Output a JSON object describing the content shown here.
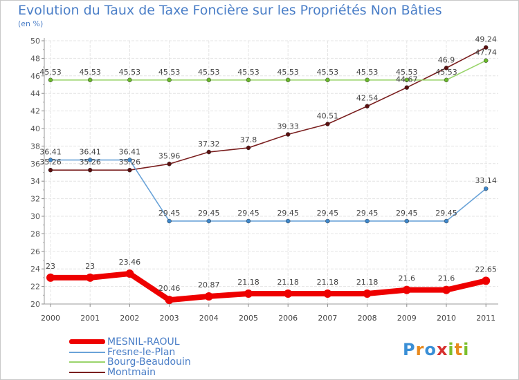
{
  "title": "Evolution du Taux de Taxe Foncière sur les Propriétés Non Bâties",
  "subtitle": "(en %)",
  "logo": {
    "text": "Proxiti",
    "letters": [
      "P",
      "r",
      "o",
      "x",
      "i",
      "t",
      "i"
    ],
    "colors": [
      "#3a8fd6",
      "#e88a1e",
      "#3a8fd6",
      "#d6302f",
      "#7cbf2c",
      "#e88a1e",
      "#7cbf2c"
    ]
  },
  "chart_data": {
    "type": "line",
    "title": "Evolution du Taux de Taxe Foncière sur les Propriétés Non Bâties",
    "ylabel": "(en %)",
    "xlabel": "",
    "ylim": [
      20,
      50
    ],
    "y_ticks": [
      20,
      22,
      24,
      26,
      28,
      30,
      32,
      34,
      36,
      38,
      40,
      42,
      44,
      46,
      48,
      50
    ],
    "categories": [
      "2000",
      "2001",
      "2002",
      "2003",
      "2004",
      "2005",
      "2006",
      "2007",
      "2008",
      "2009",
      "2010",
      "2011"
    ],
    "grid": true,
    "series": [
      {
        "name": "Montmain",
        "color": "#7a1f1f",
        "marker_color": "#5a1010",
        "values": [
          35.26,
          35.26,
          35.26,
          35.96,
          37.32,
          37.8,
          39.33,
          40.51,
          42.54,
          44.67,
          46.9,
          49.24
        ],
        "labels": [
          "35.26",
          "35.26",
          "35.26",
          "35.96",
          "37.32",
          "37.8",
          "39.33",
          "40.51",
          "42.54",
          "44.67",
          "46.9",
          "49.24"
        ]
      },
      {
        "name": "Bourg-Beaudouin",
        "color": "#99d46a",
        "marker_color": "#6ab82c",
        "values": [
          45.53,
          45.53,
          45.53,
          45.53,
          45.53,
          45.53,
          45.53,
          45.53,
          45.53,
          45.53,
          45.53,
          47.74
        ],
        "labels": [
          "45.53",
          "45.53",
          "45.53",
          "45.53",
          "45.53",
          "45.53",
          "45.53",
          "45.53",
          "45.53",
          "45.53",
          "45.53",
          "47.74"
        ]
      },
      {
        "name": "Fresne-le-Plan",
        "color": "#6aa3d8",
        "marker_color": "#3e88cc",
        "values": [
          36.41,
          36.41,
          36.41,
          29.45,
          29.45,
          29.45,
          29.45,
          29.45,
          29.45,
          29.45,
          29.45,
          33.14
        ],
        "labels": [
          "36.41",
          "36.41",
          "36.41",
          "29.45",
          "29.45",
          "29.45",
          "29.45",
          "29.45",
          "29.45",
          "29.45",
          "29.45",
          "33.14"
        ]
      },
      {
        "name": "MESNIL-RAOUL",
        "color": "#ee0000",
        "marker_color": "#ee0000",
        "values": [
          23,
          23,
          23.46,
          20.46,
          20.87,
          21.18,
          21.18,
          21.18,
          21.18,
          21.6,
          21.6,
          22.65
        ],
        "labels": [
          "23",
          "23",
          "23.46",
          "20.46",
          "20.87",
          "21.18",
          "21.18",
          "21.18",
          "21.18",
          "21.6",
          "21.6",
          "22.65"
        ]
      }
    ],
    "legend": [
      {
        "name": "MESNIL-RAOUL",
        "color": "#ee0000",
        "weight": "thick"
      },
      {
        "name": "Fresne-le-Plan",
        "color": "#6aa3d8",
        "weight": "thin"
      },
      {
        "name": "Bourg-Beaudouin",
        "color": "#99d46a",
        "weight": "thin"
      },
      {
        "name": "Montmain",
        "color": "#7a1f1f",
        "weight": "thin"
      }
    ],
    "legend_position": "bottom-left"
  }
}
